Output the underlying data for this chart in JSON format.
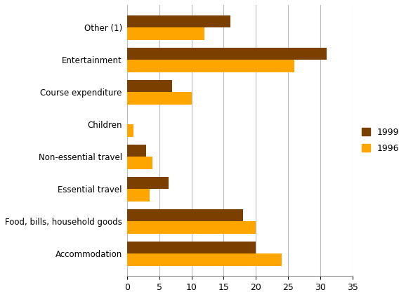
{
  "categories": [
    "Accommodation",
    "Food, bills, household goods",
    "Essential travel",
    "Non-essential travel",
    "Children",
    "Course expenditure",
    "Entertainment",
    "Other (1)"
  ],
  "values_1999": [
    20,
    18,
    6.5,
    3,
    0,
    7,
    31,
    16
  ],
  "values_1996": [
    24,
    20,
    3.5,
    4,
    1,
    10,
    26,
    12
  ],
  "color_1999": "#7B3F00",
  "color_1996": "#FFA500",
  "legend_labels": [
    "1999",
    "1996"
  ],
  "xlim": [
    0,
    35
  ],
  "xticks": [
    0,
    5,
    10,
    15,
    20,
    25,
    30,
    35
  ],
  "bar_height": 0.38,
  "figsize": [
    5.78,
    4.23
  ],
  "dpi": 100,
  "grid_color": "#bbbbbb",
  "background_color": "#ffffff"
}
